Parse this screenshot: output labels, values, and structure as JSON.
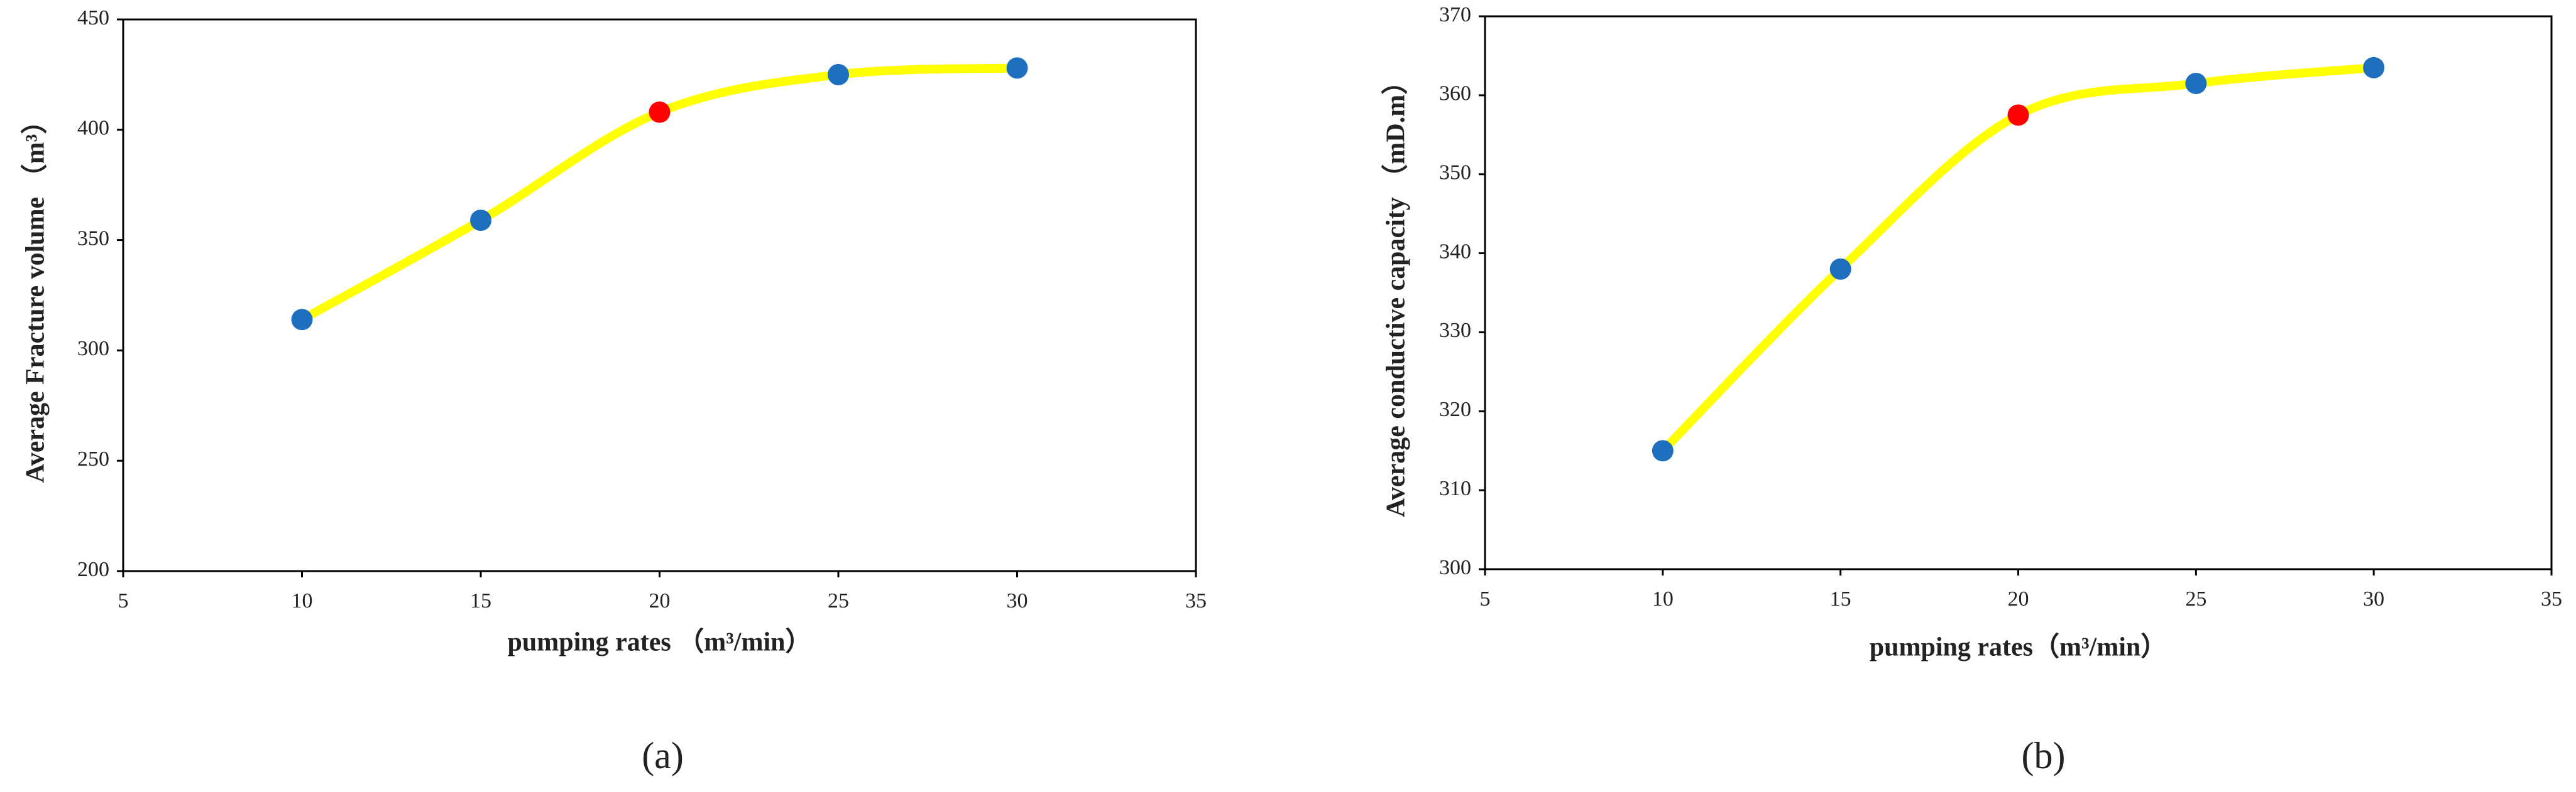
{
  "chart_data": [
    {
      "type": "line",
      "caption": "(a)",
      "xlabel": "pumping rates （m³/min）",
      "ylabel": "Average Fracture volume （m³）",
      "x": [
        10,
        15,
        20,
        25,
        30
      ],
      "values": [
        314,
        359,
        408,
        425,
        428
      ],
      "line_color": "#ffff00",
      "marker_colors": [
        "#1f6fbf",
        "#1f6fbf",
        "#ff0000",
        "#1f6fbf",
        "#1f6fbf"
      ],
      "xlim": [
        5,
        35
      ],
      "xticks": [
        5,
        10,
        15,
        20,
        25,
        30,
        35
      ],
      "ylim": [
        200,
        450
      ],
      "yticks": [
        200,
        250,
        300,
        350,
        400,
        450
      ]
    },
    {
      "type": "line",
      "caption": "(b)",
      "xlabel": "pumping rates（m³/min）",
      "ylabel": "Average conductive capacity （mD.m）",
      "x": [
        10,
        15,
        20,
        25,
        30
      ],
      "values": [
        315,
        338,
        357.5,
        361.5,
        363.5
      ],
      "line_color": "#ffff00",
      "marker_colors": [
        "#1f6fbf",
        "#1f6fbf",
        "#ff0000",
        "#1f6fbf",
        "#1f6fbf"
      ],
      "xlim": [
        5,
        35
      ],
      "xticks": [
        5,
        10,
        15,
        20,
        25,
        30,
        35
      ],
      "ylim": [
        300,
        370
      ],
      "yticks": [
        300,
        310,
        320,
        330,
        340,
        350,
        360,
        370
      ]
    }
  ]
}
